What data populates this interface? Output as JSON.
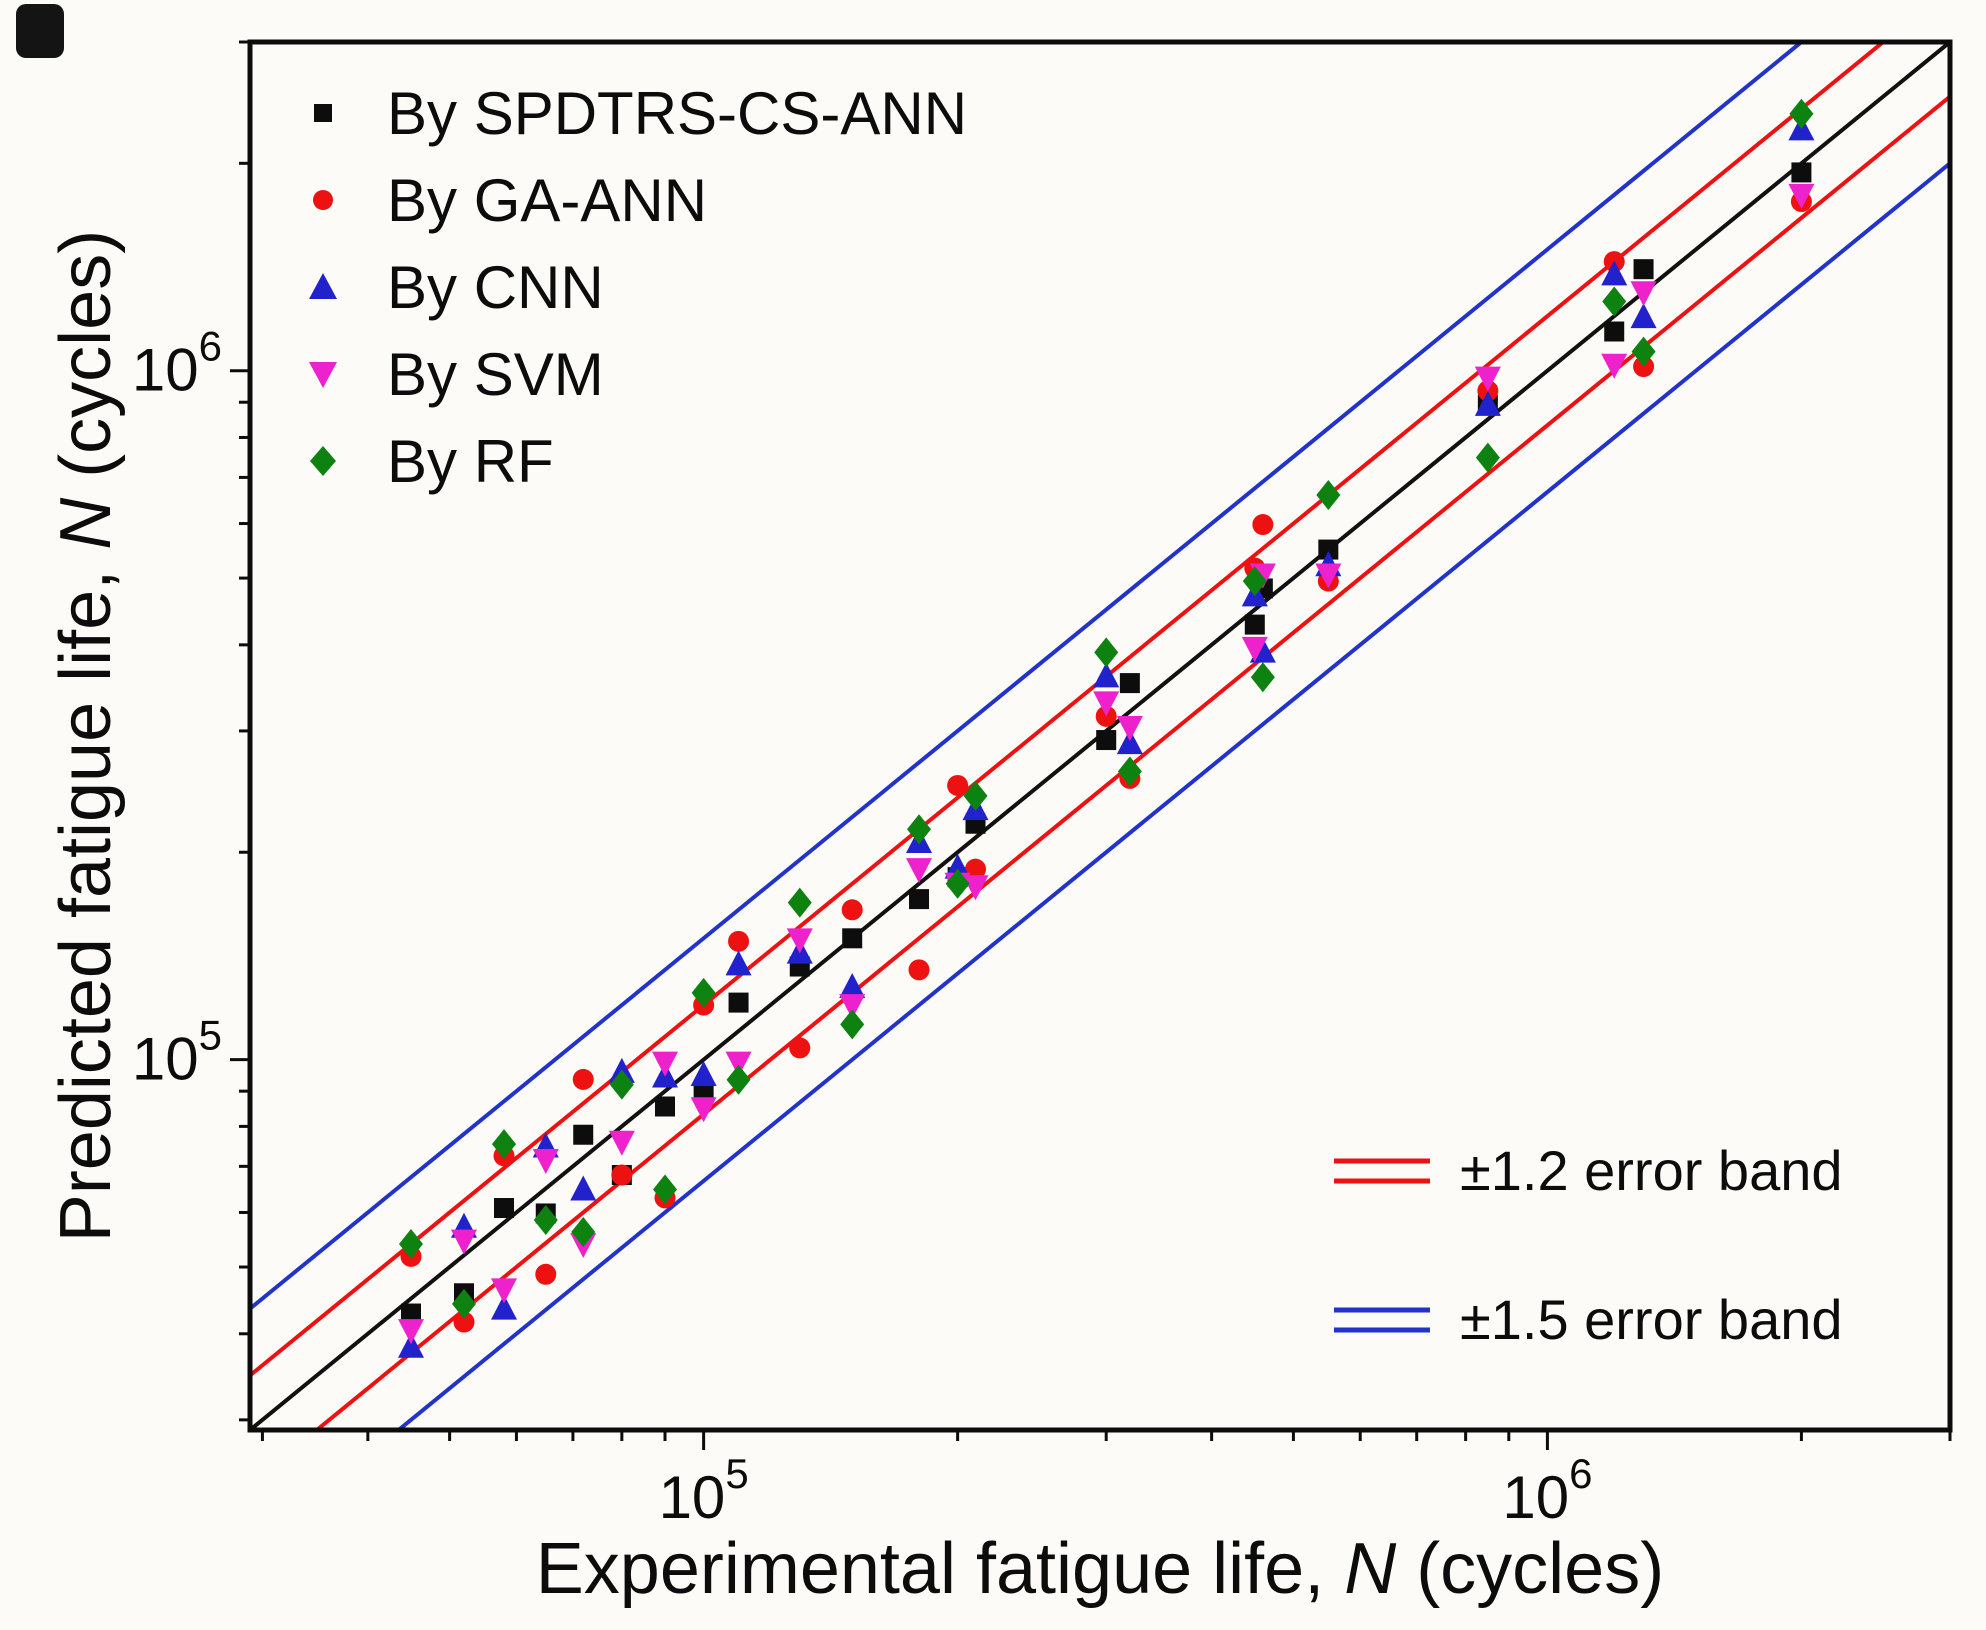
{
  "axes": {
    "x": {
      "prefix": "Experimental fatigue life, ",
      "sym": "N",
      "suffix": " (cycles)"
    },
    "y": {
      "prefix": "Predicted fatigue life, ",
      "sym": "N",
      "suffix": " (cycles)"
    }
  },
  "chart_data": {
    "type": "scatter",
    "x_scale": "log",
    "y_scale": "log",
    "xlim": [
      29000,
      3000000
    ],
    "ylim": [
      29000,
      3000000
    ],
    "grid": false,
    "legend_position": "top-left",
    "identity_color": "#111111",
    "x_ticks": [
      {
        "value": 100000,
        "base": "10",
        "exp": "5"
      },
      {
        "value": 1000000,
        "base": "10",
        "exp": "6"
      }
    ],
    "y_ticks": [
      {
        "value": 100000,
        "base": "10",
        "exp": "5"
      },
      {
        "value": 1000000,
        "base": "10",
        "exp": "6"
      }
    ],
    "bands": [
      {
        "label": "±1.2 error band",
        "factor": 1.2,
        "color": "#ee1111"
      },
      {
        "label": "±1.5 error band",
        "factor": 1.5,
        "color": "#2233cc"
      }
    ],
    "x": [
      45000,
      52000,
      58000,
      65000,
      72000,
      80000,
      90000,
      100000,
      110000,
      130000,
      150000,
      180000,
      200000,
      210000,
      300000,
      320000,
      450000,
      460000,
      550000,
      850000,
      1200000,
      1300000,
      2000000
    ],
    "series": [
      {
        "name": "By SPDTRS-CS-ANN",
        "marker": "square",
        "color": "#0d0d0d",
        "y": [
          42800,
          45800,
          60900,
          59800,
          77800,
          68000,
          85500,
          90000,
          121000,
          136500,
          150000,
          171000,
          184000,
          220000,
          291000,
          352000,
          428000,
          483000,
          550000,
          892000,
          1140000,
          1404000,
          1940000
        ]
      },
      {
        "name": "By GA-ANN",
        "marker": "circle",
        "color": "#ee1111",
        "y": [
          51800,
          41600,
          72500,
          48800,
          93600,
          68000,
          63000,
          120000,
          148500,
          104000,
          165000,
          135000,
          250000,
          189000,
          315000,
          256000,
          517000,
          598000,
          495000,
          935000,
          1440000,
          1014000,
          1760000
        ]
      },
      {
        "name": "By CNN",
        "marker": "triangle-up",
        "color": "#2222cc",
        "y": [
          38300,
          57200,
          43500,
          74800,
          64800,
          96000,
          94500,
          95000,
          137500,
          143000,
          127500,
          207000,
          190000,
          231000,
          360000,
          288000,
          472000,
          391000,
          522000,
          892000,
          1380000,
          1196000,
          2240000
        ]
      },
      {
        "name": "By SVM",
        "marker": "triangle-down",
        "color": "#ee22cc",
        "y": [
          40500,
          54600,
          46400,
          71500,
          54000,
          76000,
          99000,
          85000,
          99000,
          149500,
          120000,
          189000,
          180000,
          178500,
          330000,
          304000,
          396000,
          506000,
          506000,
          977000,
          1020000,
          1300000,
          1800000
        ]
      },
      {
        "name": "By RF",
        "marker": "diamond",
        "color": "#0e8211",
        "y": [
          54000,
          44200,
          75400,
          58500,
          56200,
          92000,
          64800,
          125000,
          93500,
          169000,
          112500,
          216000,
          180000,
          241500,
          390000,
          262000,
          495000,
          359000,
          660000,
          748000,
          1260000,
          1066000,
          2360000
        ]
      }
    ]
  }
}
